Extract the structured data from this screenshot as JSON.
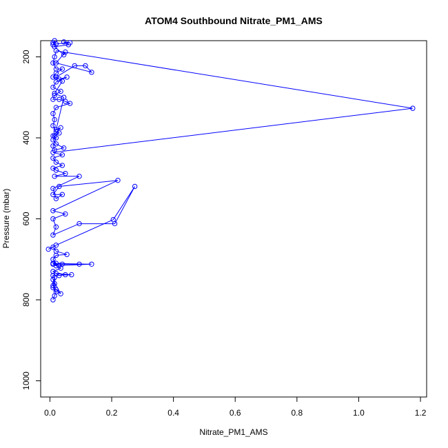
{
  "chart_data": {
    "type": "line",
    "title": "ATOM4 Southbound Nitrate_PM1_AMS",
    "xlabel": "Nitrate_PM1_AMS",
    "ylabel": "Pressure (mbar)",
    "xlim": [
      -0.03,
      1.22
    ],
    "ylim": [
      1040,
      160
    ],
    "y_reversed": true,
    "grid": false,
    "legend": "none",
    "xticks": [
      0.0,
      0.2,
      0.4,
      0.6,
      0.8,
      1.0,
      1.2
    ],
    "xtick_labels": [
      "0.0",
      "0.2",
      "0.4",
      "0.6",
      "0.8",
      "1.0",
      "1.2"
    ],
    "yticks": [
      200,
      400,
      600,
      800,
      1000
    ],
    "ytick_labels": [
      "200",
      "400",
      "600",
      "800",
      "1000"
    ],
    "series": [
      {
        "color": "#0000ff",
        "marker": "open-circle",
        "line": true,
        "points": [
          [
            0.01,
            800
          ],
          [
            0.015,
            790
          ],
          [
            0.02,
            780
          ],
          [
            0.01,
            770
          ],
          [
            0.015,
            760
          ],
          [
            0.01,
            750
          ],
          [
            0.035,
            785
          ],
          [
            0.02,
            775
          ],
          [
            0.01,
            765
          ],
          [
            0.015,
            745
          ],
          [
            0.01,
            740
          ],
          [
            0.07,
            738
          ],
          [
            0.02,
            735
          ],
          [
            0.05,
            738
          ],
          [
            0.03,
            740
          ],
          [
            0.01,
            730
          ],
          [
            0.035,
            722
          ],
          [
            0.02,
            716
          ],
          [
            0.01,
            710
          ],
          [
            0.135,
            712
          ],
          [
            0.03,
            715
          ],
          [
            0.01,
            712
          ],
          [
            0.095,
            712
          ],
          [
            0.04,
            712
          ],
          [
            0.02,
            710
          ],
          [
            0.01,
            700
          ],
          [
            0.02,
            690
          ],
          [
            0.055,
            688
          ],
          [
            0.02,
            680
          ],
          [
            0.01,
            670
          ],
          [
            -0.005,
            675
          ],
          [
            0.02,
            665
          ],
          [
            0.205,
            602
          ],
          [
            0.275,
            520
          ],
          [
            0.21,
            612
          ],
          [
            0.095,
            612
          ],
          [
            0.01,
            640
          ],
          [
            0.02,
            620
          ],
          [
            0.01,
            600
          ],
          [
            0.05,
            588
          ],
          [
            0.01,
            580
          ],
          [
            0.22,
            505
          ],
          [
            0.03,
            520
          ],
          [
            0.01,
            540
          ],
          [
            0.04,
            540
          ],
          [
            0.02,
            550
          ],
          [
            0.01,
            525
          ],
          [
            0.095,
            495
          ],
          [
            0.015,
            495
          ],
          [
            0.05,
            488
          ],
          [
            0.02,
            480
          ],
          [
            0.01,
            475
          ],
          [
            0.04,
            468
          ],
          [
            0.02,
            460
          ],
          [
            0.01,
            450
          ],
          [
            0.04,
            442
          ],
          [
            0.01,
            436
          ],
          [
            1.175,
            327
          ],
          [
            0.02,
            185
          ],
          [
            0.015,
            200
          ],
          [
            0.01,
            215
          ],
          [
            0.02,
            230
          ],
          [
            0.04,
            230
          ],
          [
            0.02,
            240
          ],
          [
            0.01,
            250
          ],
          [
            0.03,
            255
          ],
          [
            0.055,
            250
          ],
          [
            0.02,
            262
          ],
          [
            0.01,
            275
          ],
          [
            0.035,
            285
          ],
          [
            0.015,
            295
          ],
          [
            0.01,
            305
          ],
          [
            0.03,
            305
          ],
          [
            0.05,
            310
          ],
          [
            0.065,
            315
          ],
          [
            0.02,
            325
          ],
          [
            0.01,
            340
          ],
          [
            0.015,
            355
          ],
          [
            0.01,
            370
          ],
          [
            0.02,
            385
          ],
          [
            0.03,
            388
          ],
          [
            0.015,
            395
          ],
          [
            0.01,
            405
          ],
          [
            0.02,
            415
          ],
          [
            0.045,
            425
          ],
          [
            0.015,
            430
          ],
          [
            0.01,
            420
          ],
          [
            0.02,
            400
          ],
          [
            0.01,
            395
          ],
          [
            0.035,
            375
          ],
          [
            0.02,
            380
          ],
          [
            0.045,
            300
          ],
          [
            0.015,
            290
          ],
          [
            0.04,
            260
          ],
          [
            0.02,
            250
          ],
          [
            0.08,
            222
          ],
          [
            0.115,
            222
          ],
          [
            0.135,
            238
          ],
          [
            0.02,
            215
          ],
          [
            0.05,
            188
          ],
          [
            0.045,
            195
          ],
          [
            0.015,
            175
          ],
          [
            0.06,
            170
          ],
          [
            0.045,
            163
          ],
          [
            0.065,
            165
          ],
          [
            0.02,
            168
          ],
          [
            0.01,
            170
          ],
          [
            0.015,
            160
          ],
          [
            0.01,
            165
          ]
        ]
      }
    ]
  }
}
